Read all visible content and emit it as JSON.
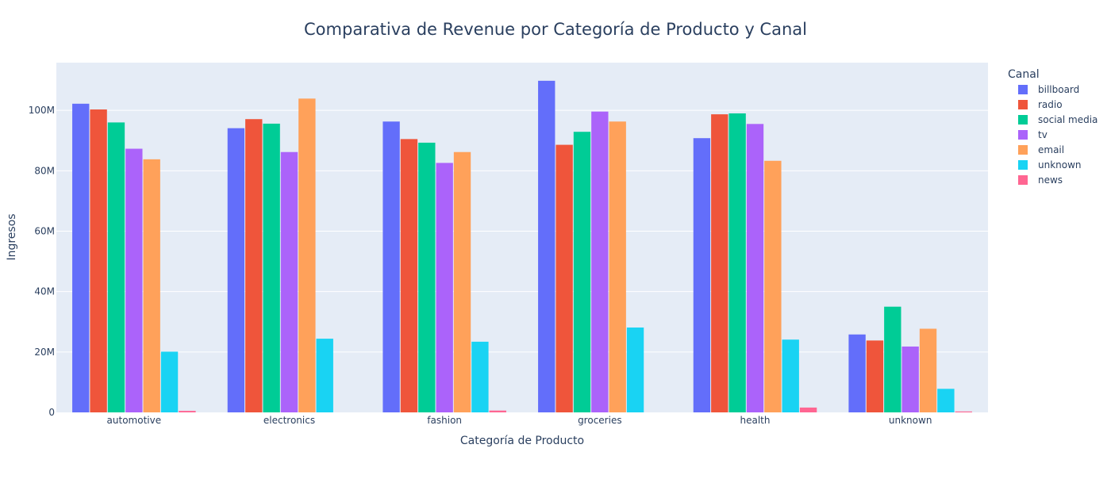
{
  "chart_data": {
    "type": "bar",
    "title": "Comparativa de Revenue por Categoría de Producto y Canal",
    "xlabel": "Categoría de Producto",
    "ylabel": "Ingresos",
    "categories": [
      "automotive",
      "electronics",
      "fashion",
      "groceries",
      "health",
      "unknown"
    ],
    "ylim": [
      0,
      115.8
    ],
    "yticks": [
      0,
      20,
      40,
      60,
      80,
      100
    ],
    "ytick_labels": [
      "0",
      "20M",
      "40M",
      "60M",
      "80M",
      "100M"
    ],
    "grid": true,
    "legend": {
      "title": "Canal",
      "placement": "right"
    },
    "series": [
      {
        "name": "billboard",
        "color": "#636efa",
        "values": [
          102.2,
          94.1,
          96.3,
          109.8,
          90.8,
          25.8
        ]
      },
      {
        "name": "radio",
        "color": "#ef553b",
        "values": [
          100.3,
          97.1,
          90.5,
          88.6,
          98.7,
          23.8
        ]
      },
      {
        "name": "social media",
        "color": "#00cc96",
        "values": [
          96.0,
          95.6,
          89.3,
          92.9,
          99.0,
          35.0
        ]
      },
      {
        "name": "tv",
        "color": "#ab63fa",
        "values": [
          87.3,
          86.2,
          82.6,
          99.6,
          95.5,
          21.8
        ]
      },
      {
        "name": "email",
        "color": "#ffa15a",
        "values": [
          83.8,
          103.9,
          86.2,
          96.3,
          83.3,
          27.7
        ]
      },
      {
        "name": "unknown",
        "color": "#19d3f3",
        "values": [
          20.1,
          24.4,
          23.4,
          28.1,
          24.1,
          7.8
        ]
      },
      {
        "name": "news",
        "color": "#ff6692",
        "values": [
          0.5,
          0.0,
          0.6,
          0.0,
          1.6,
          0.3
        ]
      }
    ]
  }
}
